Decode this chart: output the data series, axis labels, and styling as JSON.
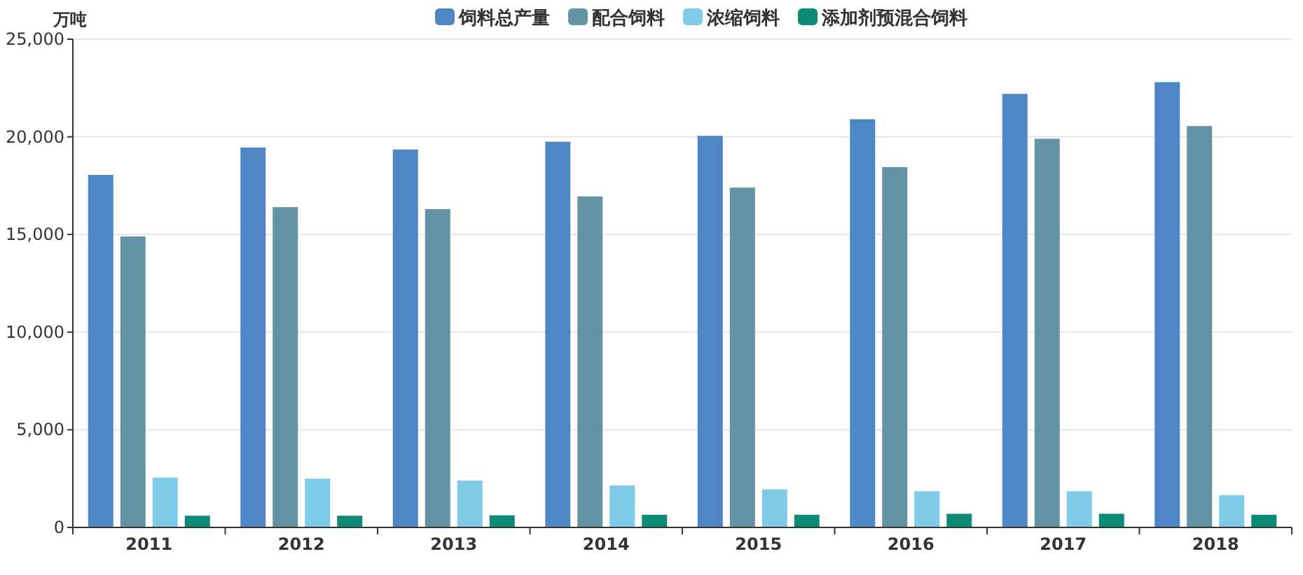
{
  "chart_data": {
    "type": "bar",
    "ylabel": "万吨",
    "categories": [
      "2011",
      "2012",
      "2013",
      "2014",
      "2015",
      "2016",
      "2017",
      "2018"
    ],
    "series": [
      {
        "name": "饲料总产量",
        "color": "#4e86c6",
        "values": [
          18050,
          19450,
          19350,
          19750,
          20050,
          20900,
          22200,
          22800
        ]
      },
      {
        "name": "配合饲料",
        "color": "#6493a5",
        "values": [
          14900,
          16400,
          16300,
          16950,
          17400,
          18450,
          19900,
          20550
        ]
      },
      {
        "name": "浓缩饲料",
        "color": "#7ecbea",
        "values": [
          2550,
          2500,
          2400,
          2150,
          1950,
          1850,
          1850,
          1650
        ]
      },
      {
        "name": "添加剂预混合饲料",
        "color": "#0e8a78",
        "values": [
          600,
          600,
          620,
          650,
          650,
          700,
          700,
          650
        ]
      }
    ],
    "ylim": [
      0,
      25000
    ],
    "yticks": [
      0,
      {
        "value": 5000,
        "label": "5,000"
      },
      {
        "value": 10000,
        "label": "10,000"
      },
      {
        "value": 15000,
        "label": "15,000"
      },
      {
        "value": 20000,
        "label": "20,000"
      },
      {
        "value": 25000,
        "label": "25,000"
      }
    ],
    "grid": "y",
    "legend": "top"
  }
}
